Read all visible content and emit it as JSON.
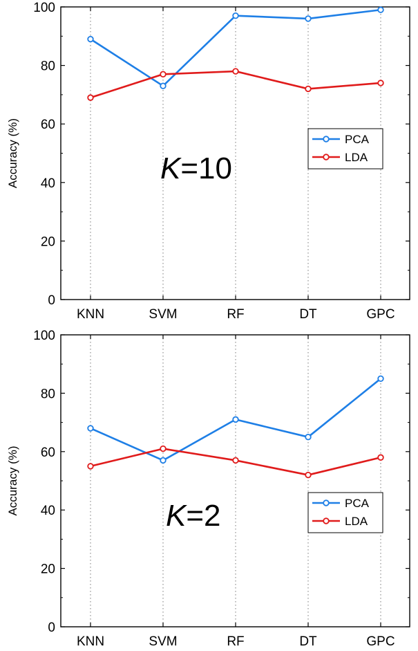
{
  "chart_data": [
    {
      "type": "line",
      "annotation": {
        "italic": "K",
        "rest": "=10"
      },
      "categories": [
        "KNN",
        "SVM",
        "RF",
        "DT",
        "GPC"
      ],
      "ylabel": "Accuracy (%)",
      "xlabel": "",
      "ylim": [
        0,
        100
      ],
      "yticks": [
        0,
        20,
        40,
        60,
        80,
        100
      ],
      "grid": "vertical dotted at categories",
      "legend_position": "center-right",
      "series": [
        {
          "name": "PCA",
          "color": "#1e7fe6",
          "values": [
            89,
            73,
            97,
            96,
            99
          ]
        },
        {
          "name": "LDA",
          "color": "#e01b1b",
          "values": [
            69,
            77,
            78,
            72,
            74
          ]
        }
      ]
    },
    {
      "type": "line",
      "annotation": {
        "italic": "K",
        "rest": "=2"
      },
      "categories": [
        "KNN",
        "SVM",
        "RF",
        "DT",
        "GPC"
      ],
      "ylabel": "Accuracy (%)",
      "xlabel": "",
      "ylim": [
        0,
        100
      ],
      "yticks": [
        0,
        20,
        40,
        60,
        80,
        100
      ],
      "grid": "vertical dotted at categories",
      "legend_position": "lower-right",
      "series": [
        {
          "name": "PCA",
          "color": "#1e7fe6",
          "values": [
            68,
            57,
            71,
            65,
            85
          ]
        },
        {
          "name": "LDA",
          "color": "#e01b1b",
          "values": [
            55,
            61,
            57,
            52,
            58
          ]
        }
      ]
    }
  ]
}
